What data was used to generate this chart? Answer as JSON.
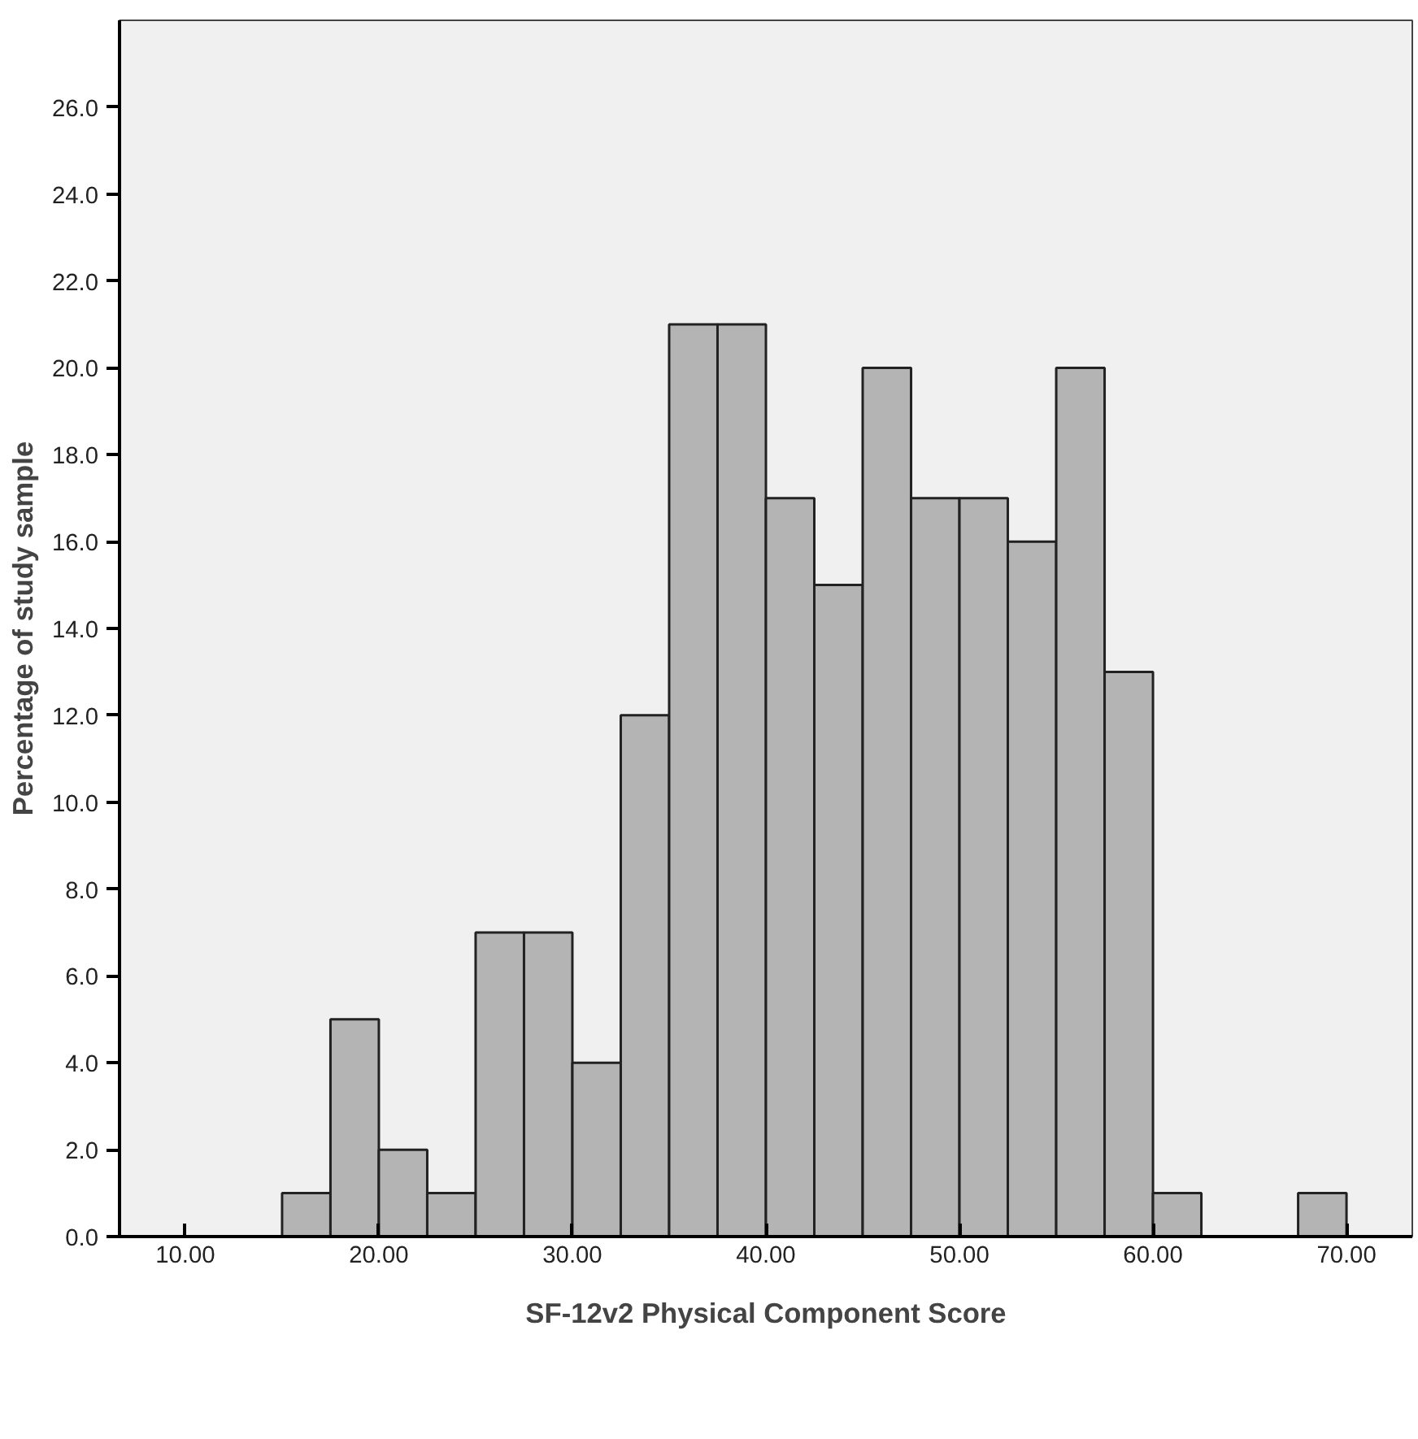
{
  "chart_data": {
    "type": "histogram",
    "xlabel": "SF-12v2 Physical Component Score",
    "ylabel": "Percentage of study sample",
    "bins": [
      15,
      17.5,
      20,
      22.5,
      25,
      27.5,
      30,
      32.5,
      35,
      37.5,
      40,
      42.5,
      45,
      47.5,
      50,
      52.5,
      55,
      57.5,
      60,
      62.5,
      65,
      67.5,
      70
    ],
    "values": [
      1,
      5,
      2,
      1,
      7,
      7,
      4,
      12,
      21,
      21,
      17,
      15,
      20,
      17,
      17,
      16,
      20,
      13,
      1,
      0,
      0,
      1
    ],
    "color": "#b4b4b4",
    "xlim": [
      6.6,
      73.4
    ],
    "ylim": [
      0,
      28
    ],
    "xticks": [
      {
        "value": 10,
        "label": "10.00"
      },
      {
        "value": 20,
        "label": "20.00"
      },
      {
        "value": 30,
        "label": "30.00"
      },
      {
        "value": 40,
        "label": "40.00"
      },
      {
        "value": 50,
        "label": "50.00"
      },
      {
        "value": 60,
        "label": "60.00"
      },
      {
        "value": 70,
        "label": "70.00"
      }
    ],
    "yticks": [
      {
        "value": 0,
        "label": "0.0"
      },
      {
        "value": 2,
        "label": "2.0"
      },
      {
        "value": 4,
        "label": "4.0"
      },
      {
        "value": 6,
        "label": "6.0"
      },
      {
        "value": 8,
        "label": "8.0"
      },
      {
        "value": 10,
        "label": "10.0"
      },
      {
        "value": 12,
        "label": "12.0"
      },
      {
        "value": 14,
        "label": "14.0"
      },
      {
        "value": 16,
        "label": "16.0"
      },
      {
        "value": 18,
        "label": "18.0"
      },
      {
        "value": 20,
        "label": "20.0"
      },
      {
        "value": 22,
        "label": "22.0"
      },
      {
        "value": 24,
        "label": "24.0"
      },
      {
        "value": 26,
        "label": "26.0"
      }
    ],
    "grid": false
  }
}
